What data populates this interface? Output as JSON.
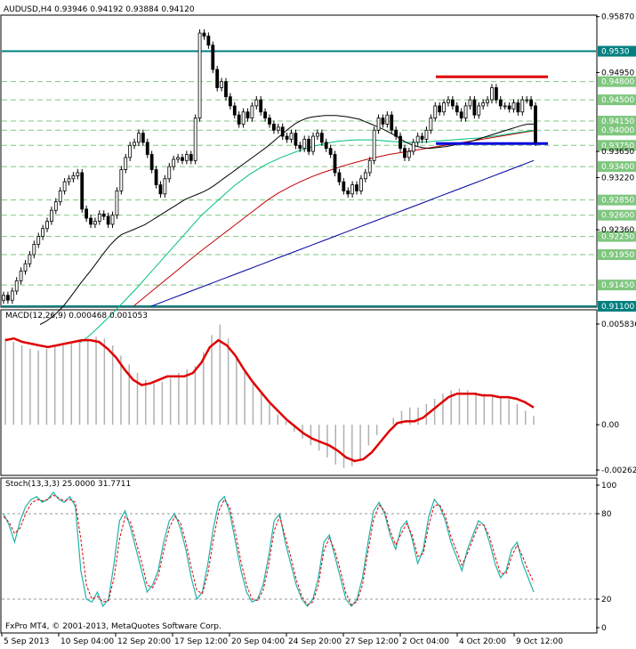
{
  "chart_data": {
    "type": "candlestick",
    "symbol_line": "AUDUSD,H4  0.93946 0.94192 0.93884 0.94120",
    "copyright": "FxPro MT4, © 2001-2013, MetaQuotes Software Corp.",
    "price_axis": {
      "ticks": [
        "0.95870",
        "0.95530",
        "0.95210",
        "0.94890",
        "0.94580",
        "0.94260",
        "0.93950",
        "0.93630",
        "0.93320",
        "0.93000",
        "0.92690",
        "0.92370",
        "0.92050",
        "0.91740",
        "0.91420",
        "0.91100"
      ],
      "ticks_printed": [
        "0.95870",
        "0.9530",
        "0.94950",
        "0.94800",
        "0.94500",
        "0.94150",
        "0.94000",
        "0.93650",
        "0.93750",
        "0.93400",
        "0.93220",
        "0.92850",
        "0.92600",
        "0.92360",
        "0.92250",
        "0.91950",
        "0.91450",
        "0.91100"
      ],
      "ylim": [
        0.911,
        0.9588
      ]
    },
    "levels": [
      {
        "price": "0.9530",
        "color": "#008080"
      },
      {
        "price": "0.94800",
        "color": "#7fc77f"
      },
      {
        "price": "0.94500",
        "color": "#7fc77f"
      },
      {
        "price": "0.94150",
        "color": "#7fc77f"
      },
      {
        "price": "0.94000",
        "color": "#7fc77f"
      },
      {
        "price": "0.93750",
        "color": "#7fc77f"
      },
      {
        "price": "0.93400",
        "color": "#7fc77f"
      },
      {
        "price": "0.92850",
        "color": "#7fc77f"
      },
      {
        "price": "0.92600",
        "color": "#7fc77f"
      },
      {
        "price": "0.92250",
        "color": "#7fc77f"
      },
      {
        "price": "0.91950",
        "color": "#7fc77f"
      },
      {
        "price": "0.91450",
        "color": "#7fc77f"
      },
      {
        "price": "0.91100",
        "color": "#008080"
      }
    ],
    "axis_ticks_plain": [
      "0.95870",
      "0.94950",
      "0.93650",
      "0.93220",
      "0.92360"
    ],
    "resistance_line": {
      "price": 0.9488,
      "color": "#e00000"
    },
    "support_line": {
      "price": 0.9378,
      "color": "#0000e0"
    },
    "x_labels": [
      "5 Sep 2013",
      "10 Sep 04:00",
      "12 Sep 20:00",
      "17 Sep 12:00",
      "20 Sep 04:00",
      "24 Sep 20:00",
      "27 Sep 12:00",
      "2 Oct 04:00",
      "4 Oct 20:00",
      "9 Oct 12:00"
    ],
    "close": [
      0.9128,
      0.912,
      0.9135,
      0.9152,
      0.9168,
      0.918,
      0.9195,
      0.9212,
      0.9225,
      0.9238,
      0.925,
      0.9268,
      0.9282,
      0.93,
      0.9315,
      0.932,
      0.9325,
      0.933,
      0.927,
      0.9255,
      0.9245,
      0.925,
      0.9262,
      0.9258,
      0.9245,
      0.926,
      0.93,
      0.9335,
      0.9355,
      0.9375,
      0.938,
      0.9395,
      0.938,
      0.936,
      0.9335,
      0.931,
      0.9295,
      0.932,
      0.934,
      0.9352,
      0.9355,
      0.935,
      0.936,
      0.935,
      0.942,
      0.956,
      0.9555,
      0.954,
      0.95,
      0.947,
      0.948,
      0.9455,
      0.944,
      0.9425,
      0.941,
      0.943,
      0.942,
      0.944,
      0.945,
      0.943,
      0.942,
      0.941,
      0.94,
      0.9405,
      0.939,
      0.9385,
      0.9395,
      0.9375,
      0.937,
      0.9385,
      0.9365,
      0.939,
      0.9395,
      0.938,
      0.937,
      0.936,
      0.933,
      0.9315,
      0.93,
      0.9295,
      0.931,
      0.93,
      0.932,
      0.933,
      0.935,
      0.94,
      0.942,
      0.941,
      0.9425,
      0.94,
      0.939,
      0.937,
      0.9355,
      0.9365,
      0.938,
      0.939,
      0.9385,
      0.94,
      0.942,
      0.944,
      0.943,
      0.9445,
      0.945,
      0.944,
      0.943,
      0.942,
      0.944,
      0.945,
      0.9425,
      0.944,
      0.9445,
      0.945,
      0.947,
      0.945,
      0.944,
      0.944,
      0.9435,
      0.9445,
      0.943,
      0.945,
      0.945,
      0.944,
      0.938
    ],
    "ma_black": [
      0.908,
      0.9085,
      0.9092,
      0.91,
      0.911,
      0.9122,
      0.9135,
      0.9148,
      0.916,
      0.9172,
      0.9185,
      0.9198,
      0.921,
      0.922,
      0.9228,
      0.9232,
      0.9236,
      0.924,
      0.9244,
      0.925,
      0.9256,
      0.9262,
      0.9268,
      0.9274,
      0.928,
      0.9286,
      0.929,
      0.9294,
      0.9298,
      0.9303,
      0.9309,
      0.9316,
      0.9323,
      0.933,
      0.9337,
      0.9344,
      0.9351,
      0.9358,
      0.9365,
      0.9372,
      0.938,
      0.9388,
      0.9396,
      0.9404,
      0.9411,
      0.9416,
      0.942,
      0.9422,
      0.9423,
      0.9424,
      0.9424,
      0.9424,
      0.9423,
      0.9422,
      0.942,
      0.9418,
      0.9414,
      0.941,
      0.9406,
      0.9402,
      0.9397,
      0.9392,
      0.9386,
      0.938,
      0.9376,
      0.9373,
      0.9371,
      0.937,
      0.9371,
      0.9372,
      0.9373,
      0.9375,
      0.9377,
      0.9379,
      0.9381,
      0.9384,
      0.9387,
      0.939,
      0.9393,
      0.9396,
      0.9399,
      0.9402,
      0.9405,
      0.9408,
      0.941,
      0.941
    ],
    "ma_green": [
      0.905,
      0.906,
      0.9072,
      0.9085,
      0.9098,
      0.9112,
      0.9126,
      0.914,
      0.9155,
      0.917,
      0.9185,
      0.92,
      0.9215,
      0.923,
      0.9245,
      0.926,
      0.9272,
      0.9284,
      0.9296,
      0.9308,
      0.9318,
      0.9328,
      0.9336,
      0.9344,
      0.935,
      0.9356,
      0.9361,
      0.9366,
      0.937,
      0.9374,
      0.9377,
      0.938,
      0.9382,
      0.9383,
      0.9384,
      0.9384,
      0.9384,
      0.9383,
      0.9382,
      0.9381,
      0.938,
      0.938,
      0.938,
      0.9381,
      0.9382,
      0.9383,
      0.9384,
      0.9385,
      0.9386,
      0.9387,
      0.9388,
      0.939,
      0.9392,
      0.9394,
      0.9396,
      0.9398,
      0.94
    ],
    "ma_red": [
      0.911,
      0.9125,
      0.914,
      0.9155,
      0.917,
      0.9185,
      0.92,
      0.9214,
      0.9228,
      0.9242,
      0.9256,
      0.927,
      0.9284,
      0.9296,
      0.9306,
      0.9315,
      0.9323,
      0.933,
      0.9336,
      0.9342,
      0.9347,
      0.9352,
      0.9356,
      0.936,
      0.9363,
      0.9366,
      0.9369,
      0.9372,
      0.9375,
      0.9378,
      0.9381,
      0.9384,
      0.9387,
      0.939,
      0.9393,
      0.9396,
      0.9399
    ],
    "ma_blue": [
      0.911,
      0.912,
      0.913,
      0.914,
      0.915,
      0.916,
      0.917,
      0.918,
      0.919,
      0.92,
      0.921,
      0.922,
      0.923,
      0.924,
      0.925,
      0.926,
      0.927,
      0.928,
      0.929,
      0.93,
      0.931,
      0.932,
      0.933,
      0.934,
      0.935
    ],
    "macd": {
      "label": "MACD(12,26,9) 0.000468 0.001053",
      "ticks": [
        "0.005836",
        "0.00",
        "-0.002627"
      ],
      "ylim": [
        -0.002627,
        0.005836
      ],
      "histogram": [
        0.005,
        0.0048,
        0.0046,
        0.0044,
        0.0043,
        0.0044,
        0.0045,
        0.0046,
        0.0047,
        0.0049,
        0.005,
        0.0051,
        0.005,
        0.0046,
        0.004,
        0.0035,
        0.003,
        0.0026,
        0.0024,
        0.0025,
        0.0027,
        0.003,
        0.0032,
        0.0034,
        0.0042,
        0.0052,
        0.0058,
        0.005,
        0.004,
        0.0032,
        0.0025,
        0.0018,
        0.0012,
        0.0006,
        0.0002,
        -0.0004,
        -0.0008,
        -0.0012,
        -0.0015,
        -0.0019,
        -0.0023,
        -0.0025,
        -0.0024,
        -0.002,
        -0.0012,
        -0.0006,
        0.0,
        0.0004,
        0.0008,
        0.001,
        0.001,
        0.0012,
        0.0015,
        0.0018,
        0.002,
        0.0021,
        0.002,
        0.0019,
        0.0018,
        0.0017,
        0.0016,
        0.0015,
        0.0012,
        0.0008,
        0.0005
      ],
      "signal": [
        0.0049,
        0.005,
        0.0048,
        0.0047,
        0.0046,
        0.0045,
        0.0046,
        0.0047,
        0.0048,
        0.0049,
        0.0049,
        0.0048,
        0.0044,
        0.0039,
        0.0032,
        0.0026,
        0.0023,
        0.0024,
        0.0026,
        0.0028,
        0.0028,
        0.0028,
        0.003,
        0.0036,
        0.0045,
        0.0049,
        0.0046,
        0.004,
        0.0032,
        0.0025,
        0.0019,
        0.0013,
        0.0008,
        0.0003,
        -0.0001,
        -0.0005,
        -0.0008,
        -0.001,
        -0.0012,
        -0.0015,
        -0.0019,
        -0.0021,
        -0.002,
        -0.0016,
        -0.001,
        -0.0004,
        0.0001,
        0.0002,
        0.0002,
        0.0004,
        0.0008,
        0.0012,
        0.0016,
        0.0018,
        0.0018,
        0.0018,
        0.0017,
        0.0017,
        0.0016,
        0.0016,
        0.0015,
        0.0013,
        0.001
      ]
    },
    "stoch": {
      "label": "Stoch(13,3,3) 25.0000 31.7711",
      "ticks": [
        "100",
        "80",
        "20",
        "0"
      ],
      "ylim": [
        0,
        100
      ],
      "main": [
        80,
        72,
        60,
        75,
        85,
        90,
        92,
        88,
        90,
        95,
        90,
        88,
        92,
        85,
        40,
        20,
        18,
        25,
        15,
        20,
        45,
        75,
        82,
        70,
        55,
        40,
        25,
        30,
        40,
        60,
        75,
        80,
        70,
        55,
        35,
        20,
        25,
        45,
        70,
        88,
        92,
        80,
        60,
        40,
        25,
        18,
        20,
        30,
        50,
        75,
        80,
        60,
        45,
        30,
        20,
        15,
        20,
        35,
        60,
        65,
        50,
        35,
        20,
        15,
        20,
        35,
        60,
        82,
        88,
        80,
        65,
        55,
        70,
        75,
        62,
        45,
        55,
        78,
        90,
        85,
        75,
        60,
        50,
        40,
        55,
        65,
        75,
        72,
        60,
        45,
        35,
        40,
        55,
        60,
        45,
        35,
        25
      ],
      "signal": [
        78,
        74,
        66,
        70,
        80,
        87,
        90,
        89,
        90,
        93,
        91,
        89,
        90,
        88,
        62,
        30,
        20,
        22,
        18,
        19,
        35,
        62,
        78,
        74,
        60,
        46,
        30,
        28,
        36,
        54,
        70,
        78,
        74,
        60,
        42,
        26,
        24,
        38,
        62,
        82,
        90,
        84,
        66,
        46,
        30,
        20,
        19,
        26,
        44,
        68,
        78,
        64,
        50,
        34,
        22,
        16,
        18,
        30,
        54,
        63,
        54,
        40,
        24,
        16,
        18,
        30,
        54,
        76,
        86,
        82,
        68,
        58,
        66,
        73,
        65,
        50,
        52,
        72,
        86,
        86,
        78,
        64,
        54,
        44,
        52,
        62,
        72,
        72,
        64,
        50,
        38,
        38,
        50,
        58,
        50,
        40,
        32
      ]
    }
  }
}
